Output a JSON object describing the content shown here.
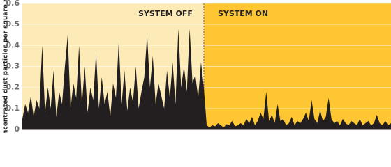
{
  "chart_data": {
    "type": "area",
    "y_label": "Concentrated dust particles per square mm",
    "x": [
      0,
      1,
      2,
      3,
      4,
      5,
      6,
      7,
      8,
      9,
      10,
      11,
      12,
      13,
      14,
      15,
      16,
      17,
      18,
      19,
      20,
      21,
      22,
      23,
      24,
      25,
      26,
      27,
      28,
      29,
      30,
      31,
      32,
      33,
      34,
      35,
      36,
      37,
      38,
      39,
      40,
      41,
      42,
      43,
      44,
      45,
      46,
      47,
      48,
      49,
      50,
      51,
      52,
      53,
      54,
      55,
      56,
      57,
      58,
      59,
      60,
      61,
      62,
      63,
      64,
      65,
      66,
      67,
      68,
      69,
      70,
      71,
      72,
      73,
      74,
      75,
      76,
      77,
      78,
      79,
      80,
      81,
      82,
      83,
      84,
      85,
      86,
      87,
      88,
      89,
      90,
      91,
      92,
      93,
      94,
      95,
      96,
      97,
      98,
      99,
      100,
      101,
      102,
      103,
      104,
      105,
      106,
      107,
      108,
      109,
      110,
      111,
      112,
      113,
      114,
      115,
      116,
      117,
      118,
      119,
      120,
      121,
      122,
      123,
      124,
      125,
      126,
      127,
      128,
      129,
      130
    ],
    "values": [
      0.05,
      0.12,
      0.08,
      0.16,
      0.06,
      0.14,
      0.1,
      0.4,
      0.08,
      0.2,
      0.1,
      0.28,
      0.06,
      0.18,
      0.12,
      0.3,
      0.45,
      0.1,
      0.22,
      0.15,
      0.4,
      0.12,
      0.3,
      0.08,
      0.2,
      0.14,
      0.37,
      0.1,
      0.25,
      0.12,
      0.18,
      0.06,
      0.22,
      0.15,
      0.42,
      0.12,
      0.28,
      0.09,
      0.2,
      0.13,
      0.3,
      0.1,
      0.18,
      0.25,
      0.45,
      0.2,
      0.35,
      0.12,
      0.22,
      0.16,
      0.1,
      0.28,
      0.15,
      0.32,
      0.12,
      0.48,
      0.2,
      0.3,
      0.18,
      0.48,
      0.22,
      0.26,
      0.15,
      0.32,
      0.2,
      0.02,
      0.01,
      0.02,
      0.015,
      0.03,
      0.02,
      0.01,
      0.025,
      0.02,
      0.04,
      0.015,
      0.02,
      0.03,
      0.02,
      0.05,
      0.03,
      0.06,
      0.02,
      0.04,
      0.08,
      0.05,
      0.18,
      0.04,
      0.07,
      0.03,
      0.12,
      0.04,
      0.05,
      0.02,
      0.03,
      0.06,
      0.02,
      0.04,
      0.03,
      0.05,
      0.08,
      0.04,
      0.14,
      0.05,
      0.03,
      0.09,
      0.04,
      0.06,
      0.15,
      0.05,
      0.03,
      0.04,
      0.02,
      0.05,
      0.03,
      0.02,
      0.04,
      0.03,
      0.02,
      0.05,
      0.02,
      0.03,
      0.04,
      0.02,
      0.03,
      0.07,
      0.03,
      0.02,
      0.04,
      0.02,
      0.03
    ],
    "color": "#231f20",
    "xlim": [
      0,
      130
    ],
    "ylim": [
      0,
      0.6
    ],
    "yticks": [
      0,
      0.1,
      0.2,
      0.3,
      0.4,
      0.5,
      0.6
    ],
    "grid": true,
    "regions": [
      {
        "label": "SYSTEM OFF",
        "from": 0,
        "to": 64,
        "color": "#fcebb6"
      },
      {
        "label": "SYSTEM ON",
        "from": 64,
        "to": 130,
        "color": "#fdc632"
      }
    ]
  }
}
